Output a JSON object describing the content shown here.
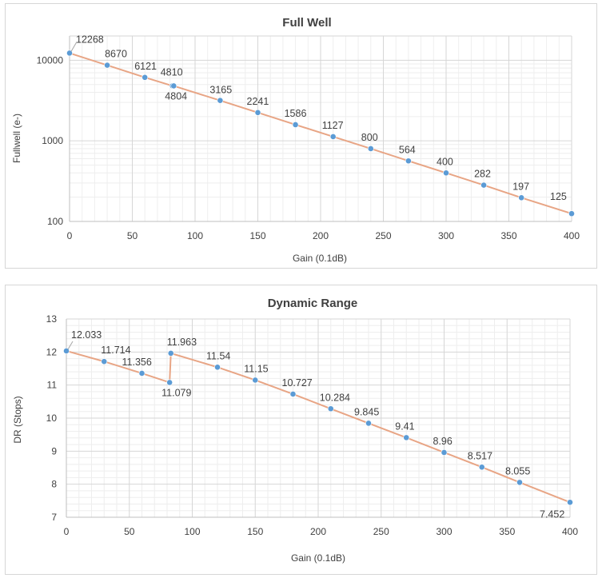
{
  "chart_data": [
    {
      "type": "line",
      "title": "Full Well",
      "xlabel": "Gain (0.1dB)",
      "ylabel": "Fullwell (e-)",
      "xlim": [
        0,
        400
      ],
      "ylim": [
        100,
        20000
      ],
      "yscale": "log",
      "xticks": [
        "0",
        "50",
        "100",
        "150",
        "200",
        "250",
        "300",
        "350",
        "400"
      ],
      "yticks": [
        "100",
        "1000",
        "10000"
      ],
      "grid": true,
      "series": [
        {
          "name": "Fullwell",
          "x": [
            0,
            30,
            60,
            82,
            83,
            120,
            150,
            180,
            210,
            240,
            270,
            300,
            330,
            360,
            400
          ],
          "values": [
            12268,
            8670,
            6121,
            4810,
            4804,
            3165,
            2241,
            1586,
            1127,
            800,
            564,
            400,
            282,
            197,
            125
          ],
          "labels": [
            "12268",
            "8670",
            "6121",
            "4810",
            "4804",
            "3165",
            "2241",
            "1586",
            "1127",
            "800",
            "564",
            "400",
            "282",
            "197",
            "125"
          ]
        }
      ],
      "line_color": "#e8a585",
      "marker_color": "#5b9bd5"
    },
    {
      "type": "line",
      "title": "Dynamic Range",
      "xlabel": "Gain (0.1dB)",
      "ylabel": "DR (Stops)",
      "xlim": [
        0,
        400
      ],
      "ylim": [
        7,
        13
      ],
      "xticks": [
        "0",
        "50",
        "100",
        "150",
        "200",
        "250",
        "300",
        "350",
        "400"
      ],
      "yticks": [
        "7",
        "8",
        "9",
        "10",
        "11",
        "12",
        "13"
      ],
      "grid": true,
      "series": [
        {
          "name": "DR",
          "x": [
            0,
            30,
            60,
            82,
            83,
            120,
            150,
            180,
            210,
            240,
            270,
            300,
            330,
            360,
            400
          ],
          "values": [
            12.033,
            11.714,
            11.356,
            11.079,
            11.963,
            11.54,
            11.15,
            10.727,
            10.284,
            9.845,
            9.41,
            8.96,
            8.517,
            8.055,
            7.452
          ],
          "labels": [
            "12.033",
            "11.714",
            "11.356",
            "11.079",
            "11.963",
            "11.54",
            "11.15",
            "10.727",
            "10.284",
            "9.845",
            "9.41",
            "8.96",
            "8.517",
            "8.055",
            "7.452"
          ]
        }
      ],
      "line_color": "#e8a585",
      "marker_color": "#5b9bd5"
    }
  ]
}
